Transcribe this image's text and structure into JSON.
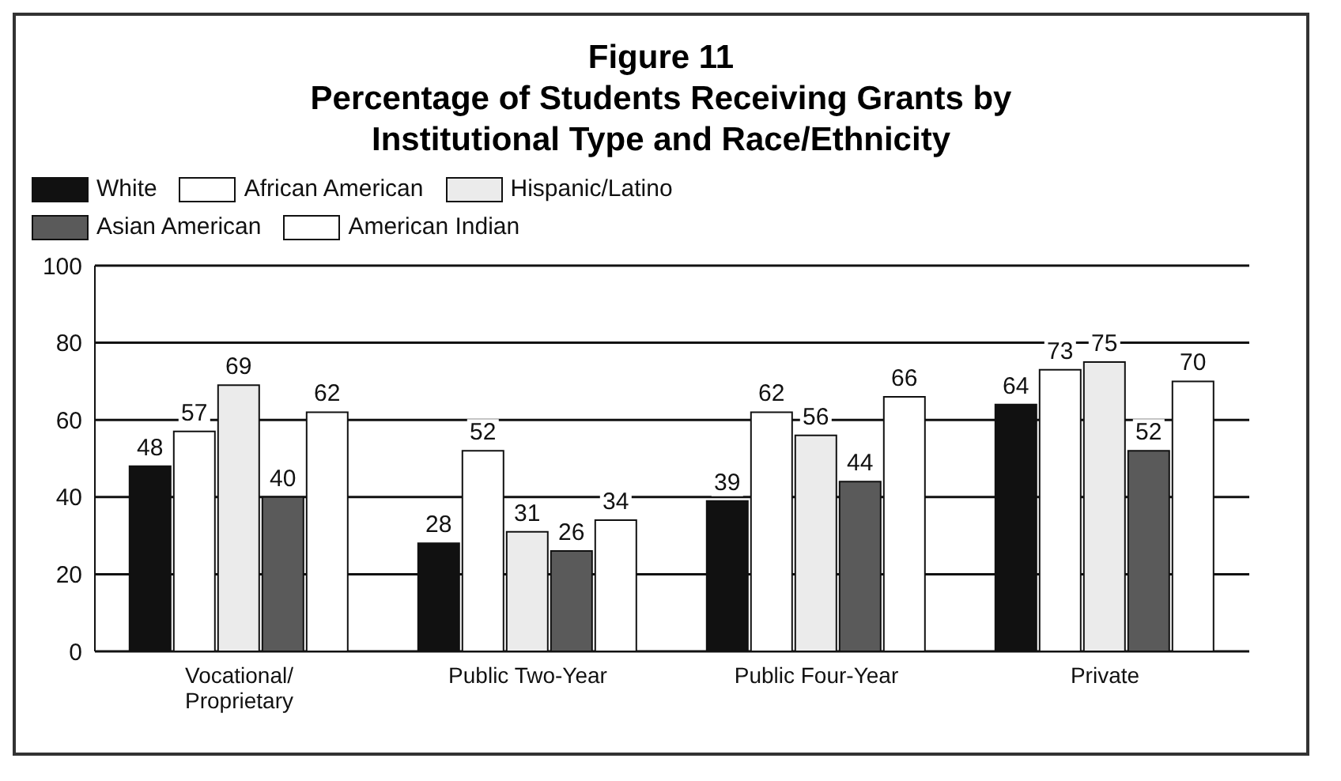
{
  "chart_data": {
    "type": "bar",
    "title": "Figure 11",
    "subtitle": "Percentage of Students Receiving Grants by Institutional Type and Race/Ethnicity",
    "categories": [
      "Vocational/ Proprietary",
      "Public Two-Year",
      "Public Four-Year",
      "Private"
    ],
    "series": [
      {
        "name": "White",
        "color": "#111111",
        "values": [
          48,
          28,
          39,
          64
        ]
      },
      {
        "name": "African American",
        "color": "#ffffff",
        "values": [
          57,
          52,
          62,
          73
        ]
      },
      {
        "name": "Hispanic/Latino",
        "color": "#ebebeb",
        "values": [
          69,
          31,
          56,
          75
        ]
      },
      {
        "name": "Asian American",
        "color": "#5a5a5a",
        "values": [
          40,
          26,
          44,
          52
        ]
      },
      {
        "name": "American Indian",
        "color": "#ffffff",
        "values": [
          62,
          34,
          66,
          70
        ]
      }
    ],
    "ylim": [
      0,
      100
    ],
    "yticks": [
      0,
      20,
      40,
      60,
      80,
      100
    ],
    "grid": "y",
    "legend": "top left",
    "data_labels": true
  }
}
